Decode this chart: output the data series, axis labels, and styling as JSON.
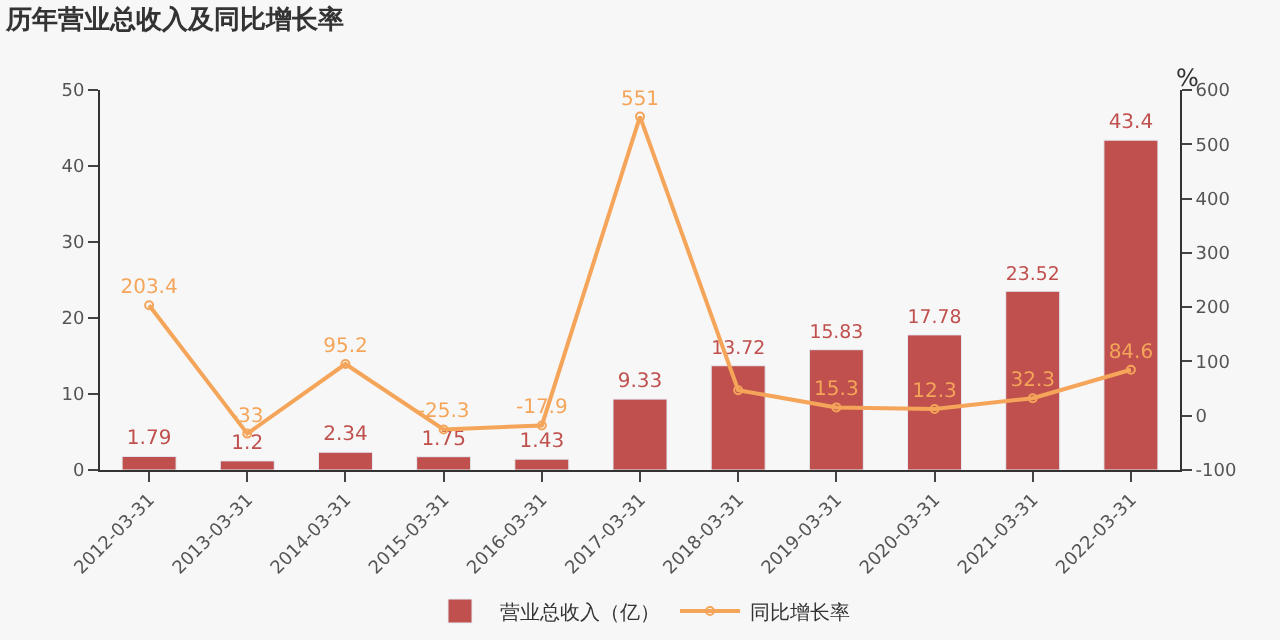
{
  "chart_data": {
    "type": "bar",
    "title": "历年营业总收入及同比增长率",
    "y2label": "%",
    "categories": [
      "2012-03-31",
      "2013-03-31",
      "2014-03-31",
      "2015-03-31",
      "2016-03-31",
      "2017-03-31",
      "2018-03-31",
      "2019-03-31",
      "2020-03-31",
      "2021-03-31",
      "2022-03-31"
    ],
    "series": [
      {
        "name": "营业总收入（亿）",
        "color": "#c0504d",
        "values": [
          1.79,
          1.2,
          2.34,
          1.75,
          1.43,
          9.33,
          13.72,
          15.83,
          17.78,
          23.52,
          43.4
        ]
      },
      {
        "name": "同比增长率",
        "type": "line",
        "axis": "y2",
        "color": "#f5a55a",
        "marker": "circle",
        "values": [
          203.4,
          -33,
          95.2,
          -25.3,
          -17.9,
          551,
          47,
          15.3,
          12.3,
          32.3,
          84.6
        ],
        "value_labels": [
          "203.4",
          "-33",
          "95.2",
          "-25.3",
          "-17.9",
          "551",
          null,
          "15.3",
          "12.3",
          "32.3",
          "84.6"
        ]
      }
    ],
    "ylim": [
      0,
      50
    ],
    "yticks": [
      0,
      10,
      20,
      30,
      40,
      50
    ],
    "y2lim": [
      -100,
      600
    ],
    "y2ticks": [
      -100,
      0,
      100,
      200,
      300,
      400,
      500,
      600
    ],
    "data_labels": true,
    "grid": false,
    "legend": "bottom"
  }
}
